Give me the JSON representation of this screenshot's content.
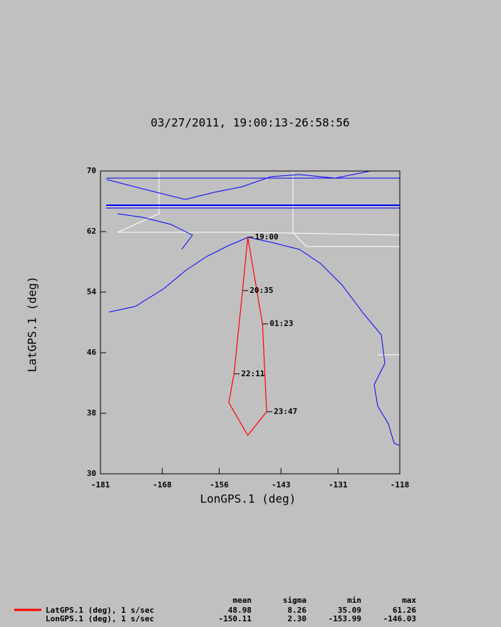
{
  "chart_data": {
    "type": "line",
    "title": "03/27/2011, 19:00:13-26:58:56",
    "x_label": "LonGPS.1 (deg)",
    "y_label": "LatGPS.1 (deg)",
    "x": [
      -150.0,
      -151.1,
      -152.9,
      -153.99,
      -150.0,
      -146.03,
      -146.9,
      -150.0
    ],
    "y": [
      61.26,
      54.2,
      43.2,
      39.4,
      35.09,
      38.2,
      49.8,
      61.26
    ],
    "point_labels": [
      "19:00",
      "20:35",
      "22:11",
      null,
      null,
      "23:47",
      "01:23",
      null
    ],
    "color": "#ff0000",
    "xlim": [
      -181,
      -118
    ],
    "xticks": [
      -181,
      -168,
      -156,
      -143,
      -131,
      -118
    ],
    "ylim": [
      30,
      70
    ],
    "yticks": [
      30,
      38,
      46,
      54,
      62,
      70
    ],
    "stats": {
      "columns": [
        "mean",
        "sigma",
        "min",
        "max"
      ],
      "rows": [
        {
          "name": "LatGPS.1 (deg), 1 s/sec",
          "values": [
            "48.98",
            "8.26",
            "35.09",
            "61.26"
          ]
        },
        {
          "name": "LonGPS.1 (deg), 1 s/sec",
          "values": [
            "-150.11",
            "2.30",
            "-153.99",
            "-146.03"
          ]
        }
      ]
    }
  }
}
